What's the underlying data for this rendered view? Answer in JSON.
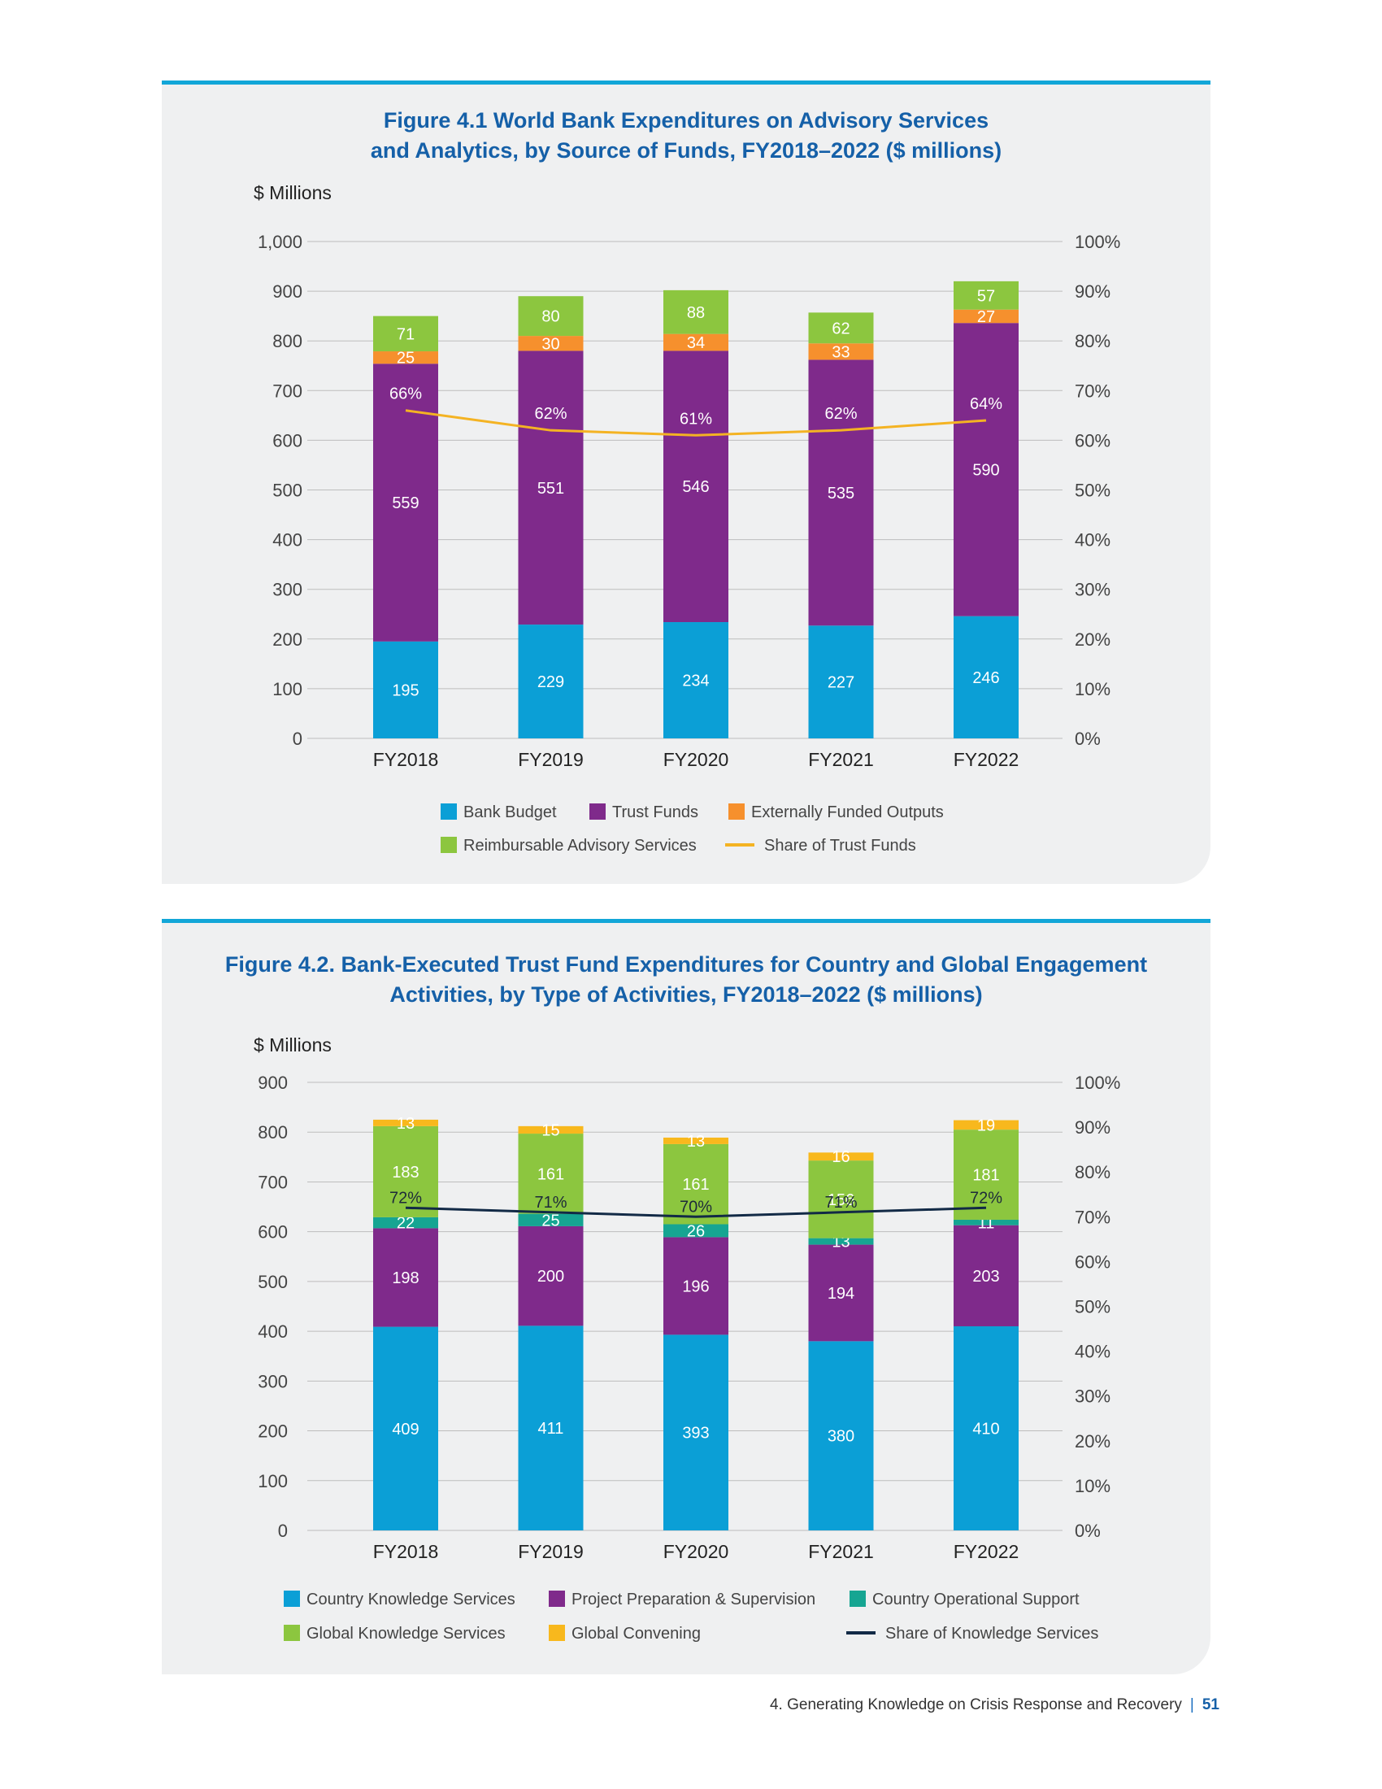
{
  "figures": [
    {
      "title_line1": "Figure 4.1 World Bank Expenditures on Advisory Services",
      "title_line2": "and Analytics, by Source of Funds, FY2018–2022 ($ millions)"
    },
    {
      "title_line1": "Figure 4.2. Bank-Executed Trust Fund Expenditures for Country and Global Engagement",
      "title_line2": "Activities, by Type of Activities, FY2018–2022 ($ millions)"
    }
  ],
  "footer": {
    "text": "4. Generating Knowledge on Crisis Response and Recovery",
    "separator": "|",
    "page": "51"
  },
  "chart_data": [
    {
      "type": "bar",
      "stacked": true,
      "ylabel": "$ Millions",
      "ylim": [
        0,
        1000
      ],
      "y_ticks": [
        "0",
        "100",
        "200",
        "300",
        "400",
        "500",
        "600",
        "700",
        "800",
        "900",
        "1,000"
      ],
      "y2lim": [
        0,
        100
      ],
      "y2_ticks": [
        "0%",
        "10%",
        "20%",
        "30%",
        "40%",
        "50%",
        "60%",
        "70%",
        "80%",
        "90%",
        "100%"
      ],
      "categories": [
        "FY2018",
        "FY2019",
        "FY2020",
        "FY2021",
        "FY2022"
      ],
      "series": [
        {
          "name": "Bank Budget",
          "color": "#0b9fd6",
          "values": [
            195,
            229,
            234,
            227,
            246
          ]
        },
        {
          "name": "Trust Funds",
          "color": "#7f2a8b",
          "values": [
            559,
            551,
            546,
            535,
            590
          ]
        },
        {
          "name": "Externally Funded Outputs",
          "color": "#f6902d",
          "values": [
            25,
            30,
            34,
            33,
            27
          ]
        },
        {
          "name": "Reimbursable Advisory Services",
          "color": "#8cc63f",
          "values": [
            71,
            80,
            88,
            62,
            57
          ]
        }
      ],
      "line": {
        "name": "Share of Trust Funds",
        "color": "#f4b323",
        "values": [
          66,
          62,
          61,
          62,
          64
        ],
        "labels": [
          "66%",
          "62%",
          "61%",
          "62%",
          "64%"
        ]
      },
      "legend_rows": [
        [
          "Bank Budget",
          "Trust Funds",
          "Externally Funded Outputs"
        ],
        [
          "Reimbursable Advisory Services",
          "Share of Trust Funds"
        ]
      ],
      "legend": "bottom",
      "grid": true
    },
    {
      "type": "bar",
      "stacked": true,
      "ylabel": "$ Millions",
      "ylim": [
        0,
        900
      ],
      "y_ticks": [
        "0",
        "100",
        "200",
        "300",
        "400",
        "500",
        "600",
        "700",
        "800",
        "900"
      ],
      "y2lim": [
        0,
        100
      ],
      "y2_ticks": [
        "0%",
        "10%",
        "20%",
        "30%",
        "40%",
        "50%",
        "60%",
        "70%",
        "80%",
        "90%",
        "100%"
      ],
      "categories": [
        "FY2018",
        "FY2019",
        "FY2020",
        "FY2021",
        "FY2022"
      ],
      "series": [
        {
          "name": "Country Knowledge Services",
          "color": "#0b9fd6",
          "values": [
            409,
            411,
            393,
            380,
            410
          ]
        },
        {
          "name": "Project Preparation & Supervision",
          "color": "#7f2a8b",
          "values": [
            198,
            200,
            196,
            194,
            203
          ]
        },
        {
          "name": "Country Operational Support",
          "color": "#16a592",
          "values": [
            22,
            25,
            26,
            13,
            11
          ]
        },
        {
          "name": "Global Knowledge Services",
          "color": "#8cc63f",
          "values": [
            183,
            161,
            161,
            156,
            181
          ]
        },
        {
          "name": "Global Convening",
          "color": "#f8b81d",
          "values": [
            13,
            15,
            13,
            16,
            19
          ]
        }
      ],
      "line": {
        "name": "Share of Knowledge Services",
        "color": "#122a46",
        "values": [
          72,
          71,
          70,
          71,
          72
        ],
        "labels": [
          "72%",
          "71%",
          "70%",
          "71%",
          "72%"
        ]
      },
      "legend_rows": [
        [
          "Country Knowledge Services",
          "Project Preparation & Supervision",
          "Country Operational Support"
        ],
        [
          "Global Knowledge Services",
          "Global Convening",
          "Share of Knowledge Services"
        ]
      ],
      "legend": "bottom",
      "grid": true
    }
  ]
}
